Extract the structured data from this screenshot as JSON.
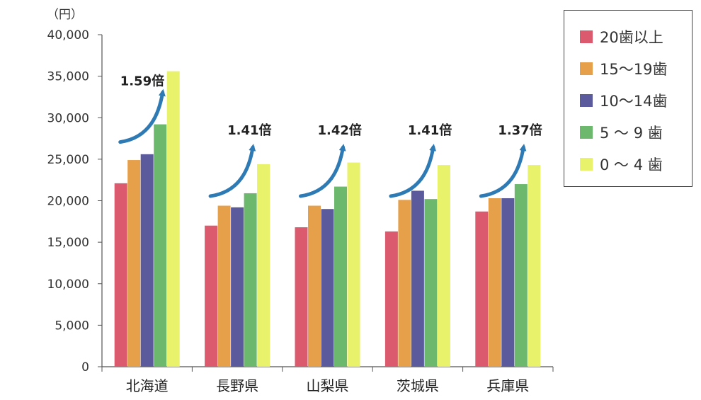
{
  "chart_data": {
    "type": "bar",
    "ylabel": "（円）",
    "ylim": [
      0,
      40000
    ],
    "yticks": [
      "0",
      "5,000",
      "10,000",
      "15,000",
      "20,000",
      "25,000",
      "30,000",
      "35,000",
      "40,000"
    ],
    "categories": [
      "北海道",
      "長野県",
      "山梨県",
      "茨城県",
      "兵庫県"
    ],
    "series": [
      {
        "name": "20歯以上",
        "color": "#dc5a6e",
        "values": [
          22100,
          17000,
          16800,
          16300,
          18700
        ]
      },
      {
        "name": "15〜19歯",
        "color": "#e7a04a",
        "values": [
          24900,
          19400,
          19400,
          20100,
          20300
        ]
      },
      {
        "name": "10〜14歯",
        "color": "#5a5a9c",
        "values": [
          25600,
          19200,
          19000,
          21200,
          20300
        ]
      },
      {
        "name": "5 〜 9 歯",
        "color": "#6cb86c",
        "values": [
          29200,
          20900,
          21700,
          20200,
          22000
        ]
      },
      {
        "name": "0 〜 4 歯",
        "color": "#e8f26a",
        "values": [
          35600,
          24400,
          24600,
          24300,
          24300
        ]
      }
    ],
    "annotations": [
      "1.59倍",
      "1.41倍",
      "1.42倍",
      "1.41倍",
      "1.37倍"
    ],
    "arrow_color": "#2e7ab4",
    "legend_position": "top-right",
    "grid": false
  }
}
